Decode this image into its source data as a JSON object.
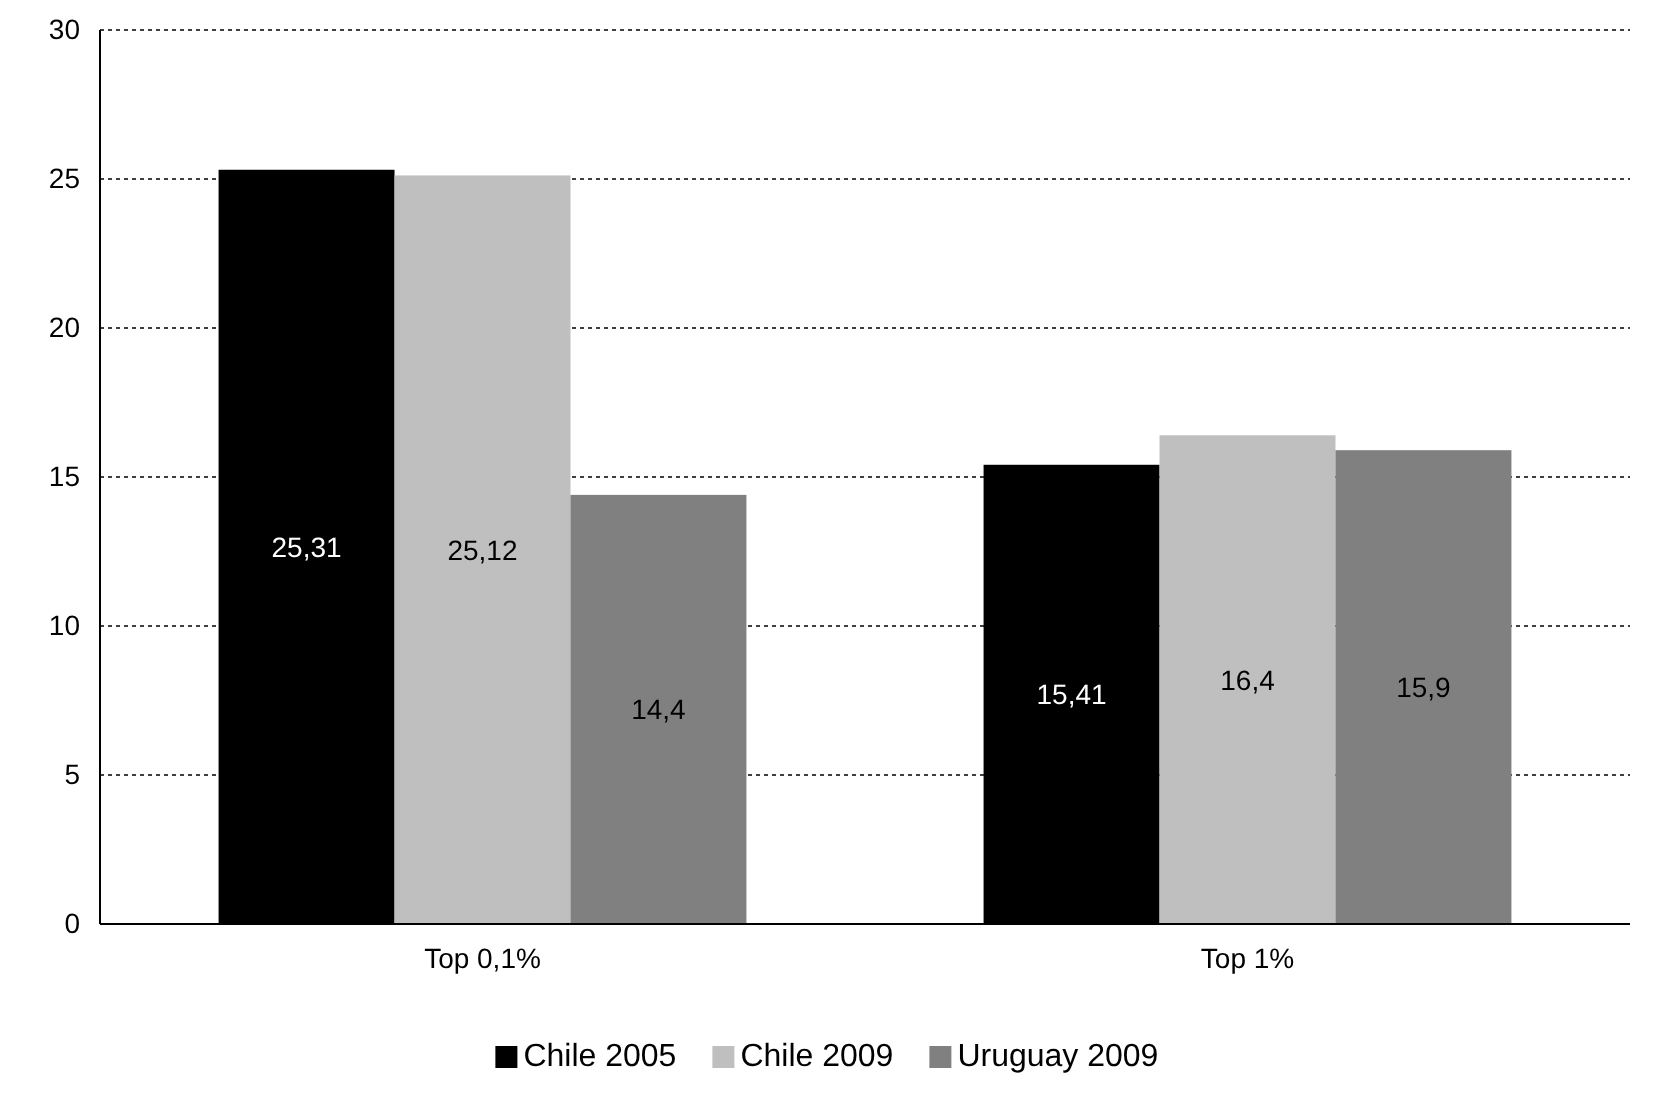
{
  "chart_data": {
    "type": "bar",
    "categories": [
      "Top 0,1%",
      "Top 1%"
    ],
    "series": [
      {
        "name": "Chile 2005",
        "color": "#000000",
        "values": [
          25.31,
          15.41
        ],
        "value_labels": [
          "25,31",
          "15,41"
        ]
      },
      {
        "name": "Chile 2009",
        "color": "#bfbfbf",
        "values": [
          25.12,
          16.4
        ],
        "value_labels": [
          "25,12",
          "16,4"
        ]
      },
      {
        "name": "Uruguay 2009",
        "color": "#808080",
        "values": [
          14.4,
          15.9
        ],
        "value_labels": [
          "14,4",
          "15,9"
        ]
      }
    ],
    "ylim": [
      0,
      30
    ],
    "yticks": [
      0,
      5,
      10,
      15,
      20,
      25,
      30
    ],
    "grid": "y",
    "legend": "bottom"
  }
}
